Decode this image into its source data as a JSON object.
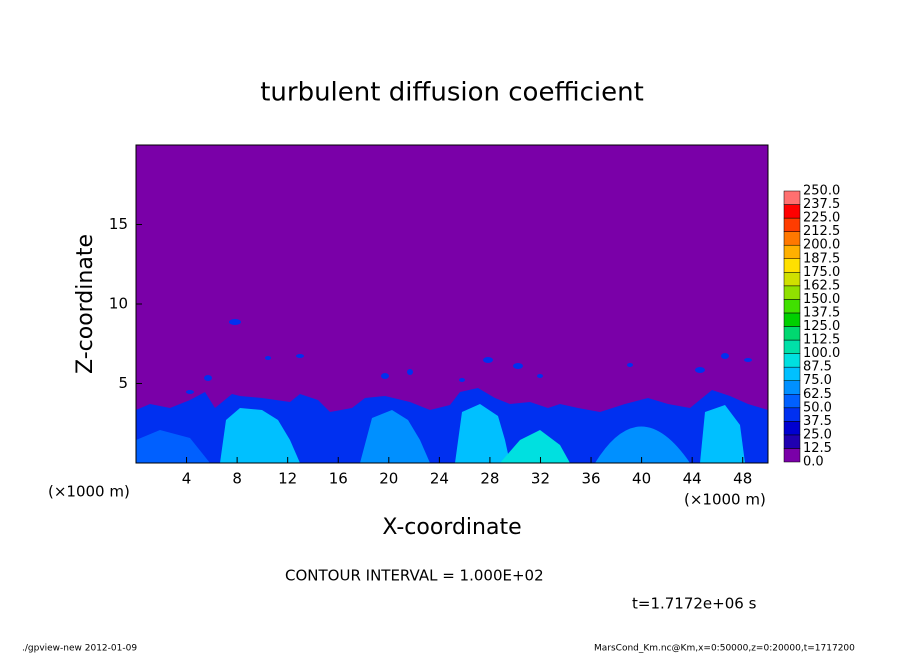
{
  "chart_data": {
    "type": "contour",
    "title": "turbulent diffusion coefficient",
    "x_label": "X-coordinate",
    "y_label": "Z-coordinate",
    "x_unit": "(×1000 m)",
    "xlim": [
      0,
      50
    ],
    "xticks": [
      4,
      8,
      12,
      16,
      20,
      24,
      28,
      32,
      36,
      40,
      44,
      48
    ],
    "ylim": [
      0,
      20
    ],
    "yticks": [
      5,
      10,
      15
    ],
    "contour_interval": "CONTOUR INTERVAL = 1.000E+02",
    "time_label": "t=1.7172e+06 s",
    "footer_left": "./gpview-new  2012-01-09",
    "footer_right": "MarsCond_Km.nc@Km,x=0:50000,z=0:20000,t=1717200",
    "colorbar": {
      "levels": [
        {
          "value": 0,
          "label": "0.0"
        },
        12.5,
        {
          "value": 25,
          "label": "25.0"
        },
        37.5,
        {
          "value": 50,
          "label": "50.0"
        },
        62.5,
        {
          "value": 75,
          "label": "75.0"
        },
        87.5,
        {
          "value": 100,
          "label": "100.0"
        },
        112.5,
        {
          "value": 125,
          "label": "125.0"
        },
        137.5,
        {
          "value": 150,
          "label": "150.0"
        },
        162.5,
        {
          "value": 175,
          "label": "175.0"
        },
        187.5,
        {
          "value": 200,
          "label": "200.0"
        },
        212.5,
        {
          "value": 225,
          "label": "225.0"
        },
        237.5,
        {
          "value": 250,
          "label": "250.0"
        }
      ],
      "colors": [
        "#7a00a8",
        "#2000b0",
        "#0000d0",
        "#0030f0",
        "#0060ff",
        "#0090ff",
        "#00c0ff",
        "#00e0e0",
        "#00e0a8",
        "#00d870",
        "#00d000",
        "#40e000",
        "#90e000",
        "#d0e000",
        "#ffe000",
        "#ffb000",
        "#ff7800",
        "#ff3c00",
        "#ff0000",
        "#ff7070"
      ]
    }
  }
}
